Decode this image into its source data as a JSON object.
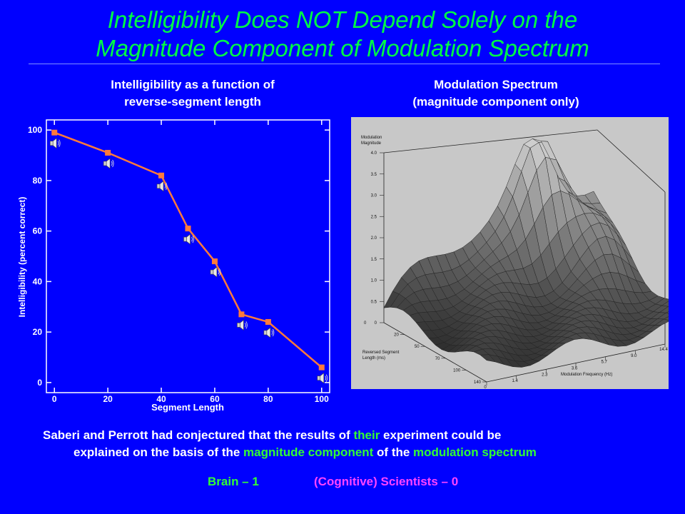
{
  "slide": {
    "title_line1": "Intelligibility Does NOT Depend Solely on the",
    "title_line2": "Magnitude Component of Modulation Spectrum",
    "left_subtitle_line1": "Intelligibility as a function of",
    "left_subtitle_line2": "reverse-segment length",
    "right_subtitle_line1": "Modulation Spectrum",
    "right_subtitle_line2": "(magnitude component only)",
    "footer": {
      "p1": "Saberi and Perrott had conjectured that the results of ",
      "g1": "their",
      "p2": " experiment could be",
      "p3": "explained on the basis of the ",
      "g2": "magnitude component",
      "p4": " of the ",
      "g3": "modulation spectrum"
    },
    "score_left": "Brain – 1",
    "score_right": "(Cognitive) Scientists – 0",
    "colors": {
      "background": "#0000ff",
      "title": "#00ff44",
      "accent_green": "#33ff33",
      "accent_magenta": "#ff44ff",
      "series": "#ff7a3a"
    }
  },
  "chart_data": [
    {
      "type": "line",
      "title": "",
      "xlabel": "Segment Length",
      "ylabel": "Intelligibility (percent correct)",
      "xlim": [
        -3,
        103
      ],
      "ylim": [
        -4,
        104
      ],
      "xticks": [
        0,
        20,
        40,
        60,
        80,
        100
      ],
      "yticks": [
        0,
        20,
        40,
        60,
        80,
        100
      ],
      "marker": "square",
      "icon": "speaker-icon",
      "series": [
        {
          "x": [
            0,
            20,
            40,
            50,
            60,
            70,
            80,
            100
          ],
          "values": [
            99,
            91,
            82,
            61,
            48,
            27,
            24,
            6
          ]
        }
      ]
    },
    {
      "type": "surface",
      "zlabel_line1": "Modulation",
      "zlabel_line2": "Magnitude",
      "z_ticks": [
        "4.0",
        "3.5",
        "3.0",
        "2.5",
        "2.0",
        "1.5",
        "1.0",
        "0.5",
        "0"
      ],
      "seg_label_line1": "Reversed Segment",
      "seg_label_line2": "Length (ms)",
      "seg_ticks": [
        "20",
        "50",
        "70",
        "100",
        "140"
      ],
      "seg_origin": "0",
      "freq_label": "Modulation Frequency (Hz)",
      "freq_ticks": [
        "0",
        "1.4",
        "2.3",
        "3.6",
        "5.7",
        "9.0",
        "14.4"
      ],
      "seg_values": [
        0,
        20,
        50,
        70,
        100,
        140
      ],
      "freq_values": [
        0,
        1.4,
        2.3,
        3.6,
        5.7,
        9.0,
        14.4
      ],
      "magnitude_range": [
        0,
        4.0
      ]
    }
  ]
}
